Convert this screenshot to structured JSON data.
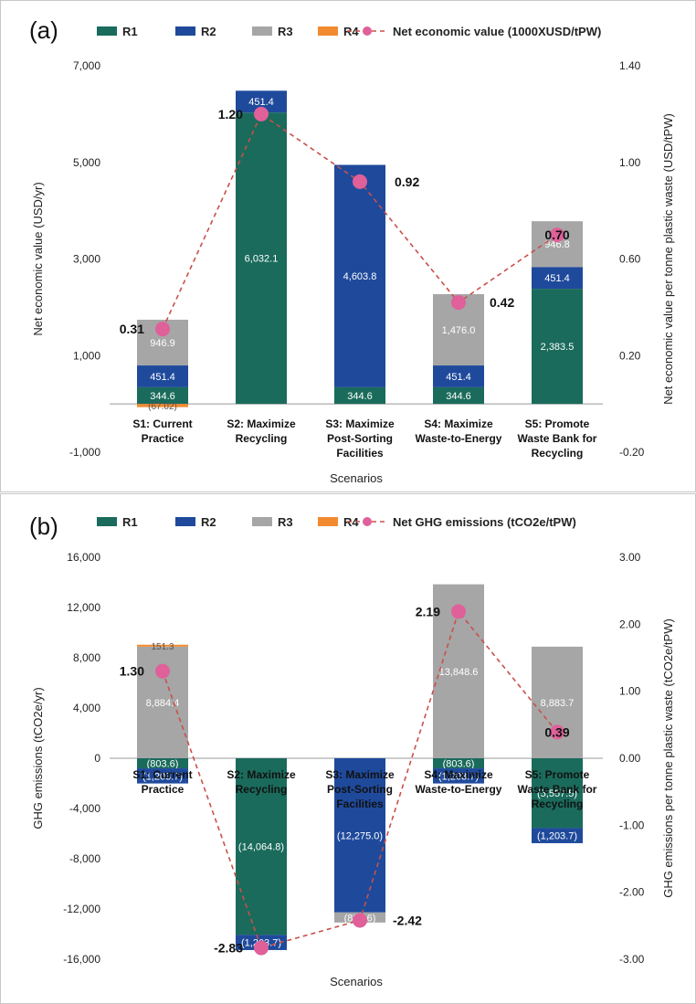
{
  "figure_tags": [
    "(a)",
    "(b)"
  ],
  "colors": {
    "R1": "#1a6b5c",
    "R2": "#1f4a9c",
    "R3": "#a6a6a6",
    "R4": "#f28a30",
    "net": "#e0609a",
    "net_line": "#c8504a"
  },
  "chart_data": [
    {
      "type": "bar",
      "stacked": true,
      "tag": "(a)",
      "xlabel": "Scenarios",
      "ylabel": "Net economic value (USD/yr)",
      "y2label": "Net economic value per tonne plastic waste (USD/tPW)",
      "ylim": [
        -1000,
        7000
      ],
      "yticks": [
        -1000,
        1000,
        3000,
        5000,
        7000
      ],
      "ytick_labels": [
        "-1,000",
        "1,000",
        "3,000",
        "5,000",
        "7,000"
      ],
      "y2lim": [
        -0.2,
        1.4
      ],
      "y2ticks": [
        -0.2,
        0.2,
        0.6,
        1.0,
        1.4
      ],
      "y2tick_labels": [
        "-0.20",
        "0.20",
        "0.60",
        "1.00",
        "1.40"
      ],
      "legend": [
        "R1",
        "R2",
        "R3",
        "R4",
        "Net economic value (1000XUSD/tPW)"
      ],
      "categories": [
        [
          "S1: Current",
          "Practice"
        ],
        [
          "S2: Maximize",
          "Recycling"
        ],
        [
          "S3: Maximize",
          "Post-Sorting",
          "Facilities"
        ],
        [
          "S4: Maximize",
          "Waste-to-Energy"
        ],
        [
          "S5: Promote",
          "Waste Bank for",
          "Recycling"
        ]
      ],
      "series": [
        {
          "name": "R1",
          "values": [
            344.6,
            6032.1,
            344.6,
            344.6,
            2383.5
          ],
          "labels": [
            "344.6",
            "6,032.1",
            "344.6",
            "344.6",
            "2,383.5"
          ]
        },
        {
          "name": "R2",
          "values": [
            451.4,
            451.4,
            4603.8,
            451.4,
            451.4
          ],
          "labels": [
            "451.4",
            "451.4",
            "4,603.8",
            "451.4",
            "451.4"
          ]
        },
        {
          "name": "R3",
          "values": [
            946.9,
            0,
            0,
            1476.0,
            946.8
          ],
          "labels": [
            "946.9",
            "",
            "",
            "1,476.0",
            "946.8"
          ]
        },
        {
          "name": "R4",
          "values": [
            -67.02,
            0,
            0,
            0,
            0
          ],
          "labels": [
            "(67.02)",
            "",
            "",
            "",
            ""
          ]
        }
      ],
      "net": {
        "name": "Net economic value (1000XUSD/tPW)",
        "values": [
          0.31,
          1.2,
          0.92,
          0.42,
          0.7
        ],
        "labels": [
          "0.31",
          "1.20",
          "0.92",
          "0.42",
          "0.70"
        ]
      }
    },
    {
      "type": "bar",
      "stacked": true,
      "tag": "(b)",
      "xlabel": "Scenarios",
      "ylabel": "GHG emissions (tCO2e/yr)",
      "y2label": "GHG emissions per tonne plastic waste (tCO2e/tPW)",
      "ylim": [
        -16000,
        16000
      ],
      "yticks": [
        -16000,
        -12000,
        -8000,
        -4000,
        0,
        4000,
        8000,
        12000,
        16000
      ],
      "ytick_labels": [
        "-16,000",
        "-12,000",
        "-8,000",
        "-4,000",
        "0",
        "4,000",
        "8,000",
        "12,000",
        "16,000"
      ],
      "y2lim": [
        -3.0,
        3.0
      ],
      "y2ticks": [
        -3.0,
        -2.0,
        -1.0,
        0.0,
        1.0,
        2.0,
        3.0
      ],
      "y2tick_labels": [
        "-3.00",
        "-2.00",
        "-1.00",
        "0.00",
        "1.00",
        "2.00",
        "3.00"
      ],
      "legend": [
        "R1",
        "R2",
        "R3",
        "R4",
        "Net GHG emissions (tCO2e/tPW)"
      ],
      "categories": [
        [
          "S1: Current",
          "Practice"
        ],
        [
          "S2: Maximize",
          "Recycling"
        ],
        [
          "S3: Maximize",
          "Post-Sorting",
          "Facilities"
        ],
        [
          "S4: Maximize",
          "Waste-to-Energy"
        ],
        [
          "S5: Promote",
          "Waste Bank for",
          "Recycling"
        ]
      ],
      "series": [
        {
          "name": "R1",
          "values": [
            -803.6,
            -14064.8,
            0,
            -803.6,
            -5557.5
          ],
          "labels": [
            "(803.6)",
            "(14,064.8)",
            "",
            "(803.6)",
            "(5,557.5)"
          ]
        },
        {
          "name": "R2",
          "values": [
            -1203.7,
            -1203.7,
            -12275.0,
            -1203.7,
            -1203.7
          ],
          "labels": [
            "(1,203.7)",
            "(1,203.7)",
            "(12,275.0)",
            "(1,203.7)",
            "(1,203.7)"
          ]
        },
        {
          "name": "R3",
          "values": [
            8884.4,
            0,
            -803.6,
            13848.6,
            8883.7
          ],
          "labels": [
            "8,884.4",
            "",
            "(803.6)",
            "13,848.6",
            "8,883.7"
          ]
        },
        {
          "name": "R4",
          "values": [
            151.3,
            0,
            0,
            0,
            0
          ],
          "labels": [
            "151.3",
            "",
            "",
            "",
            ""
          ]
        }
      ],
      "net": {
        "name": "Net GHG emissions (tCO2e/tPW)",
        "values": [
          1.3,
          -2.83,
          -2.42,
          2.19,
          0.39
        ],
        "labels": [
          "1.30",
          "-2.83",
          "-2.42",
          "2.19",
          "0.39"
        ]
      }
    }
  ]
}
